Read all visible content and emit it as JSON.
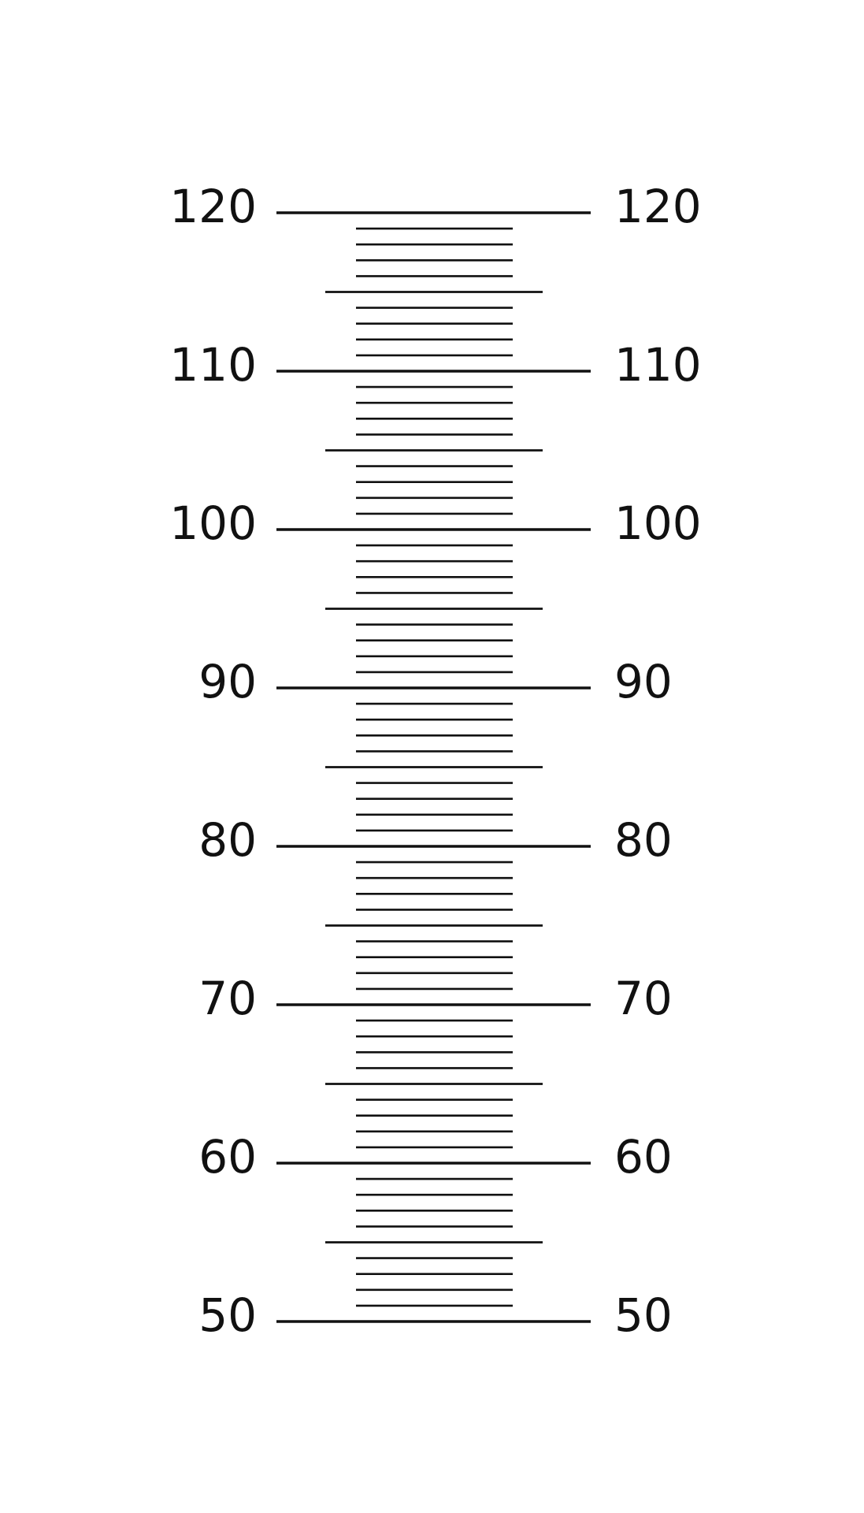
{
  "ruler": {
    "ylim": [
      50,
      120
    ],
    "major_ticks": [
      50,
      60,
      70,
      80,
      90,
      100,
      110,
      120
    ],
    "mid_ticks": [
      55,
      65,
      75,
      85,
      95,
      105,
      115
    ],
    "minor_ticks": [
      51,
      52,
      53,
      54,
      56,
      57,
      58,
      59,
      61,
      62,
      63,
      64,
      66,
      67,
      68,
      69,
      71,
      72,
      73,
      74,
      76,
      77,
      78,
      79,
      81,
      82,
      83,
      84,
      86,
      87,
      88,
      89,
      91,
      92,
      93,
      94,
      96,
      97,
      98,
      99,
      101,
      102,
      103,
      104,
      106,
      107,
      108,
      109,
      111,
      112,
      113,
      114,
      116,
      117,
      118,
      119
    ]
  }
}
